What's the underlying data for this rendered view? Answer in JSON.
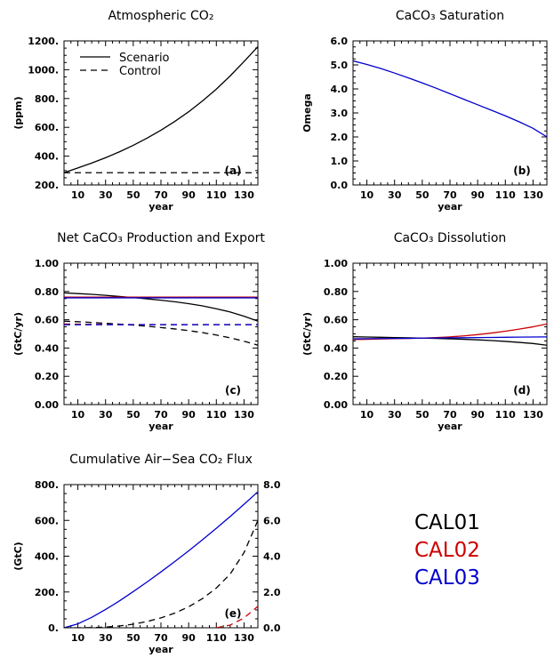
{
  "chart_data": [
    {
      "id": "a",
      "type": "line",
      "title": "Atmospheric CO₂",
      "xlabel": "year",
      "ylabel": "(ppm)",
      "panel_label": "(a)",
      "xlim": [
        0,
        140
      ],
      "ylim": [
        200,
        1200
      ],
      "x_ticks": [
        10,
        30,
        50,
        70,
        90,
        110,
        130
      ],
      "y_ticks": [
        200,
        400,
        600,
        800,
        1000,
        1200
      ],
      "y_tick_labels": [
        "200.",
        "400.",
        "600.",
        "800.",
        "1000.",
        "1200."
      ],
      "legend": {
        "position": "top-left",
        "entries": [
          {
            "label": "Scenario",
            "style": "solid"
          },
          {
            "label": "Control",
            "style": "dashed"
          }
        ]
      },
      "x": [
        0,
        10,
        20,
        30,
        40,
        50,
        60,
        70,
        80,
        90,
        100,
        110,
        120,
        130,
        140
      ],
      "series": [
        {
          "label": "Scenario",
          "color": "#000000",
          "style": "solid",
          "values": [
            285,
            318,
            352,
            389,
            430,
            475,
            525,
            580,
            641,
            708,
            783,
            865,
            957,
            1057,
            1160
          ]
        },
        {
          "label": "Control",
          "color": "#000000",
          "style": "dashed",
          "values": [
            285,
            285,
            285,
            285,
            285,
            285,
            285,
            285,
            285,
            285,
            285,
            285,
            285,
            285,
            285
          ]
        }
      ]
    },
    {
      "id": "b",
      "type": "line",
      "title": "CaCO₃ Saturation",
      "xlabel": "year",
      "ylabel": "Omega",
      "panel_label": "(b)",
      "xlim": [
        0,
        140
      ],
      "ylim": [
        0,
        6
      ],
      "x_ticks": [
        10,
        30,
        50,
        70,
        90,
        110,
        130
      ],
      "y_ticks": [
        0,
        1,
        2,
        3,
        4,
        5,
        6
      ],
      "y_tick_labels": [
        "0.0",
        "1.0",
        "2.0",
        "3.0",
        "4.0",
        "5.0",
        "6.0"
      ],
      "x": [
        0,
        10,
        20,
        30,
        40,
        50,
        60,
        70,
        80,
        90,
        100,
        110,
        120,
        130,
        140
      ],
      "series": [
        {
          "color": "#0000cc",
          "style": "solid",
          "values": [
            5.17,
            5.02,
            4.85,
            4.66,
            4.46,
            4.25,
            4.03,
            3.8,
            3.57,
            3.34,
            3.11,
            2.88,
            2.63,
            2.36,
            2.0
          ]
        }
      ]
    },
    {
      "id": "c",
      "type": "line",
      "title": "Net CaCO₃ Production and Export",
      "xlabel": "year",
      "ylabel": "(GtC/yr)",
      "panel_label": "(c)",
      "xlim": [
        0,
        140
      ],
      "ylim": [
        0,
        1
      ],
      "x_ticks": [
        10,
        30,
        50,
        70,
        90,
        110,
        130
      ],
      "y_ticks": [
        0,
        0.2,
        0.4,
        0.6,
        0.8,
        1.0
      ],
      "y_tick_labels": [
        "0.00",
        "0.20",
        "0.40",
        "0.60",
        "0.80",
        "1.00"
      ],
      "x": [
        0,
        10,
        20,
        30,
        40,
        50,
        60,
        70,
        80,
        90,
        100,
        110,
        120,
        130,
        140
      ],
      "series": [
        {
          "color": "#000000",
          "style": "solid",
          "values": [
            0.79,
            0.785,
            0.78,
            0.773,
            0.765,
            0.757,
            0.748,
            0.738,
            0.727,
            0.714,
            0.698,
            0.678,
            0.655,
            0.625,
            0.59
          ]
        },
        {
          "color": "#000000",
          "style": "dashed",
          "values": [
            0.59,
            0.586,
            0.581,
            0.575,
            0.569,
            0.562,
            0.554,
            0.545,
            0.535,
            0.523,
            0.509,
            0.492,
            0.472,
            0.448,
            0.42
          ]
        },
        {
          "color": "#cc0000",
          "style": "solid",
          "values": [
            0.76,
            0.76,
            0.76,
            0.76,
            0.76,
            0.76,
            0.76,
            0.76,
            0.76,
            0.76,
            0.76,
            0.76,
            0.76,
            0.76,
            0.76
          ]
        },
        {
          "color": "#0000cc",
          "style": "solid",
          "values": [
            0.755,
            0.755,
            0.755,
            0.755,
            0.755,
            0.755,
            0.755,
            0.755,
            0.755,
            0.755,
            0.755,
            0.755,
            0.755,
            0.755,
            0.755
          ]
        },
        {
          "color": "#cc0000",
          "style": "dashed",
          "values": [
            0.57,
            0.569,
            0.568,
            0.567,
            0.567,
            0.566,
            0.566,
            0.566,
            0.566,
            0.566,
            0.566,
            0.566,
            0.566,
            0.566,
            0.566
          ]
        },
        {
          "color": "#0000cc",
          "style": "dashed",
          "values": [
            0.565,
            0.565,
            0.565,
            0.565,
            0.565,
            0.565,
            0.565,
            0.565,
            0.565,
            0.565,
            0.565,
            0.565,
            0.565,
            0.565,
            0.565
          ]
        }
      ]
    },
    {
      "id": "d",
      "type": "line",
      "title": "CaCO₃ Dissolution",
      "xlabel": "year",
      "ylabel": "(GtC/yr)",
      "panel_label": "(d)",
      "xlim": [
        0,
        140
      ],
      "ylim": [
        0,
        1
      ],
      "x_ticks": [
        10,
        30,
        50,
        70,
        90,
        110,
        130
      ],
      "y_ticks": [
        0,
        0.2,
        0.4,
        0.6,
        0.8,
        1.0
      ],
      "y_tick_labels": [
        "0.00",
        "0.20",
        "0.40",
        "0.60",
        "0.80",
        "1.00"
      ],
      "x": [
        0,
        10,
        20,
        30,
        40,
        50,
        60,
        70,
        80,
        90,
        100,
        110,
        120,
        130,
        140
      ],
      "series": [
        {
          "color": "#000000",
          "style": "solid",
          "values": [
            0.48,
            0.478,
            0.476,
            0.474,
            0.472,
            0.47,
            0.468,
            0.465,
            0.462,
            0.458,
            0.453,
            0.447,
            0.44,
            0.432,
            0.42
          ]
        },
        {
          "color": "#cc0000",
          "style": "solid",
          "values": [
            0.46,
            0.462,
            0.464,
            0.466,
            0.468,
            0.47,
            0.474,
            0.479,
            0.486,
            0.495,
            0.506,
            0.519,
            0.534,
            0.55,
            0.57
          ]
        },
        {
          "color": "#0000cc",
          "style": "solid",
          "values": [
            0.465,
            0.466,
            0.467,
            0.468,
            0.469,
            0.47,
            0.471,
            0.472,
            0.473,
            0.474,
            0.475,
            0.476,
            0.477,
            0.478,
            0.479
          ]
        }
      ]
    },
    {
      "id": "e",
      "type": "line",
      "title": "Cumulative Air−Sea CO₂ Flux",
      "xlabel": "year",
      "ylabel": "(GtC)",
      "panel_label": "(e)",
      "xlim": [
        0,
        140
      ],
      "ylim": [
        0,
        800
      ],
      "y2lim": [
        0,
        8
      ],
      "x_ticks": [
        10,
        30,
        50,
        70,
        90,
        110,
        130
      ],
      "y_ticks": [
        0,
        200,
        400,
        600,
        800
      ],
      "y_tick_labels": [
        "0.",
        "200.",
        "400.",
        "600.",
        "800."
      ],
      "y2_ticks": [
        0,
        2,
        4,
        6,
        8
      ],
      "y2_tick_labels": [
        "0.0",
        "2.0",
        "4.0",
        "6.0",
        "8.0"
      ],
      "x": [
        0,
        10,
        20,
        30,
        40,
        50,
        60,
        70,
        80,
        90,
        100,
        110,
        120,
        130,
        140
      ],
      "series": [
        {
          "color": "#0000cc",
          "style": "solid",
          "axis": "left",
          "values": [
            0,
            22,
            58,
            102,
            150,
            202,
            256,
            312,
            370,
            430,
            492,
            556,
            622,
            690,
            760
          ]
        },
        {
          "color": "#000000",
          "style": "dashed",
          "axis": "right",
          "values": [
            0,
            0,
            0.01,
            0.04,
            0.1,
            0.2,
            0.35,
            0.55,
            0.82,
            1.17,
            1.63,
            2.22,
            3.0,
            4.2,
            6.0
          ]
        },
        {
          "color": "#cc0000",
          "style": "dashed",
          "axis": "right",
          "values": [
            null,
            null,
            null,
            null,
            null,
            null,
            null,
            null,
            null,
            null,
            null,
            0.0,
            0.15,
            0.55,
            1.2
          ]
        }
      ]
    }
  ],
  "legend_box": {
    "entries": [
      {
        "label": "CAL01",
        "color": "#000000"
      },
      {
        "label": "CAL02",
        "color": "#cc0000"
      },
      {
        "label": "CAL03",
        "color": "#0000cc"
      }
    ]
  }
}
